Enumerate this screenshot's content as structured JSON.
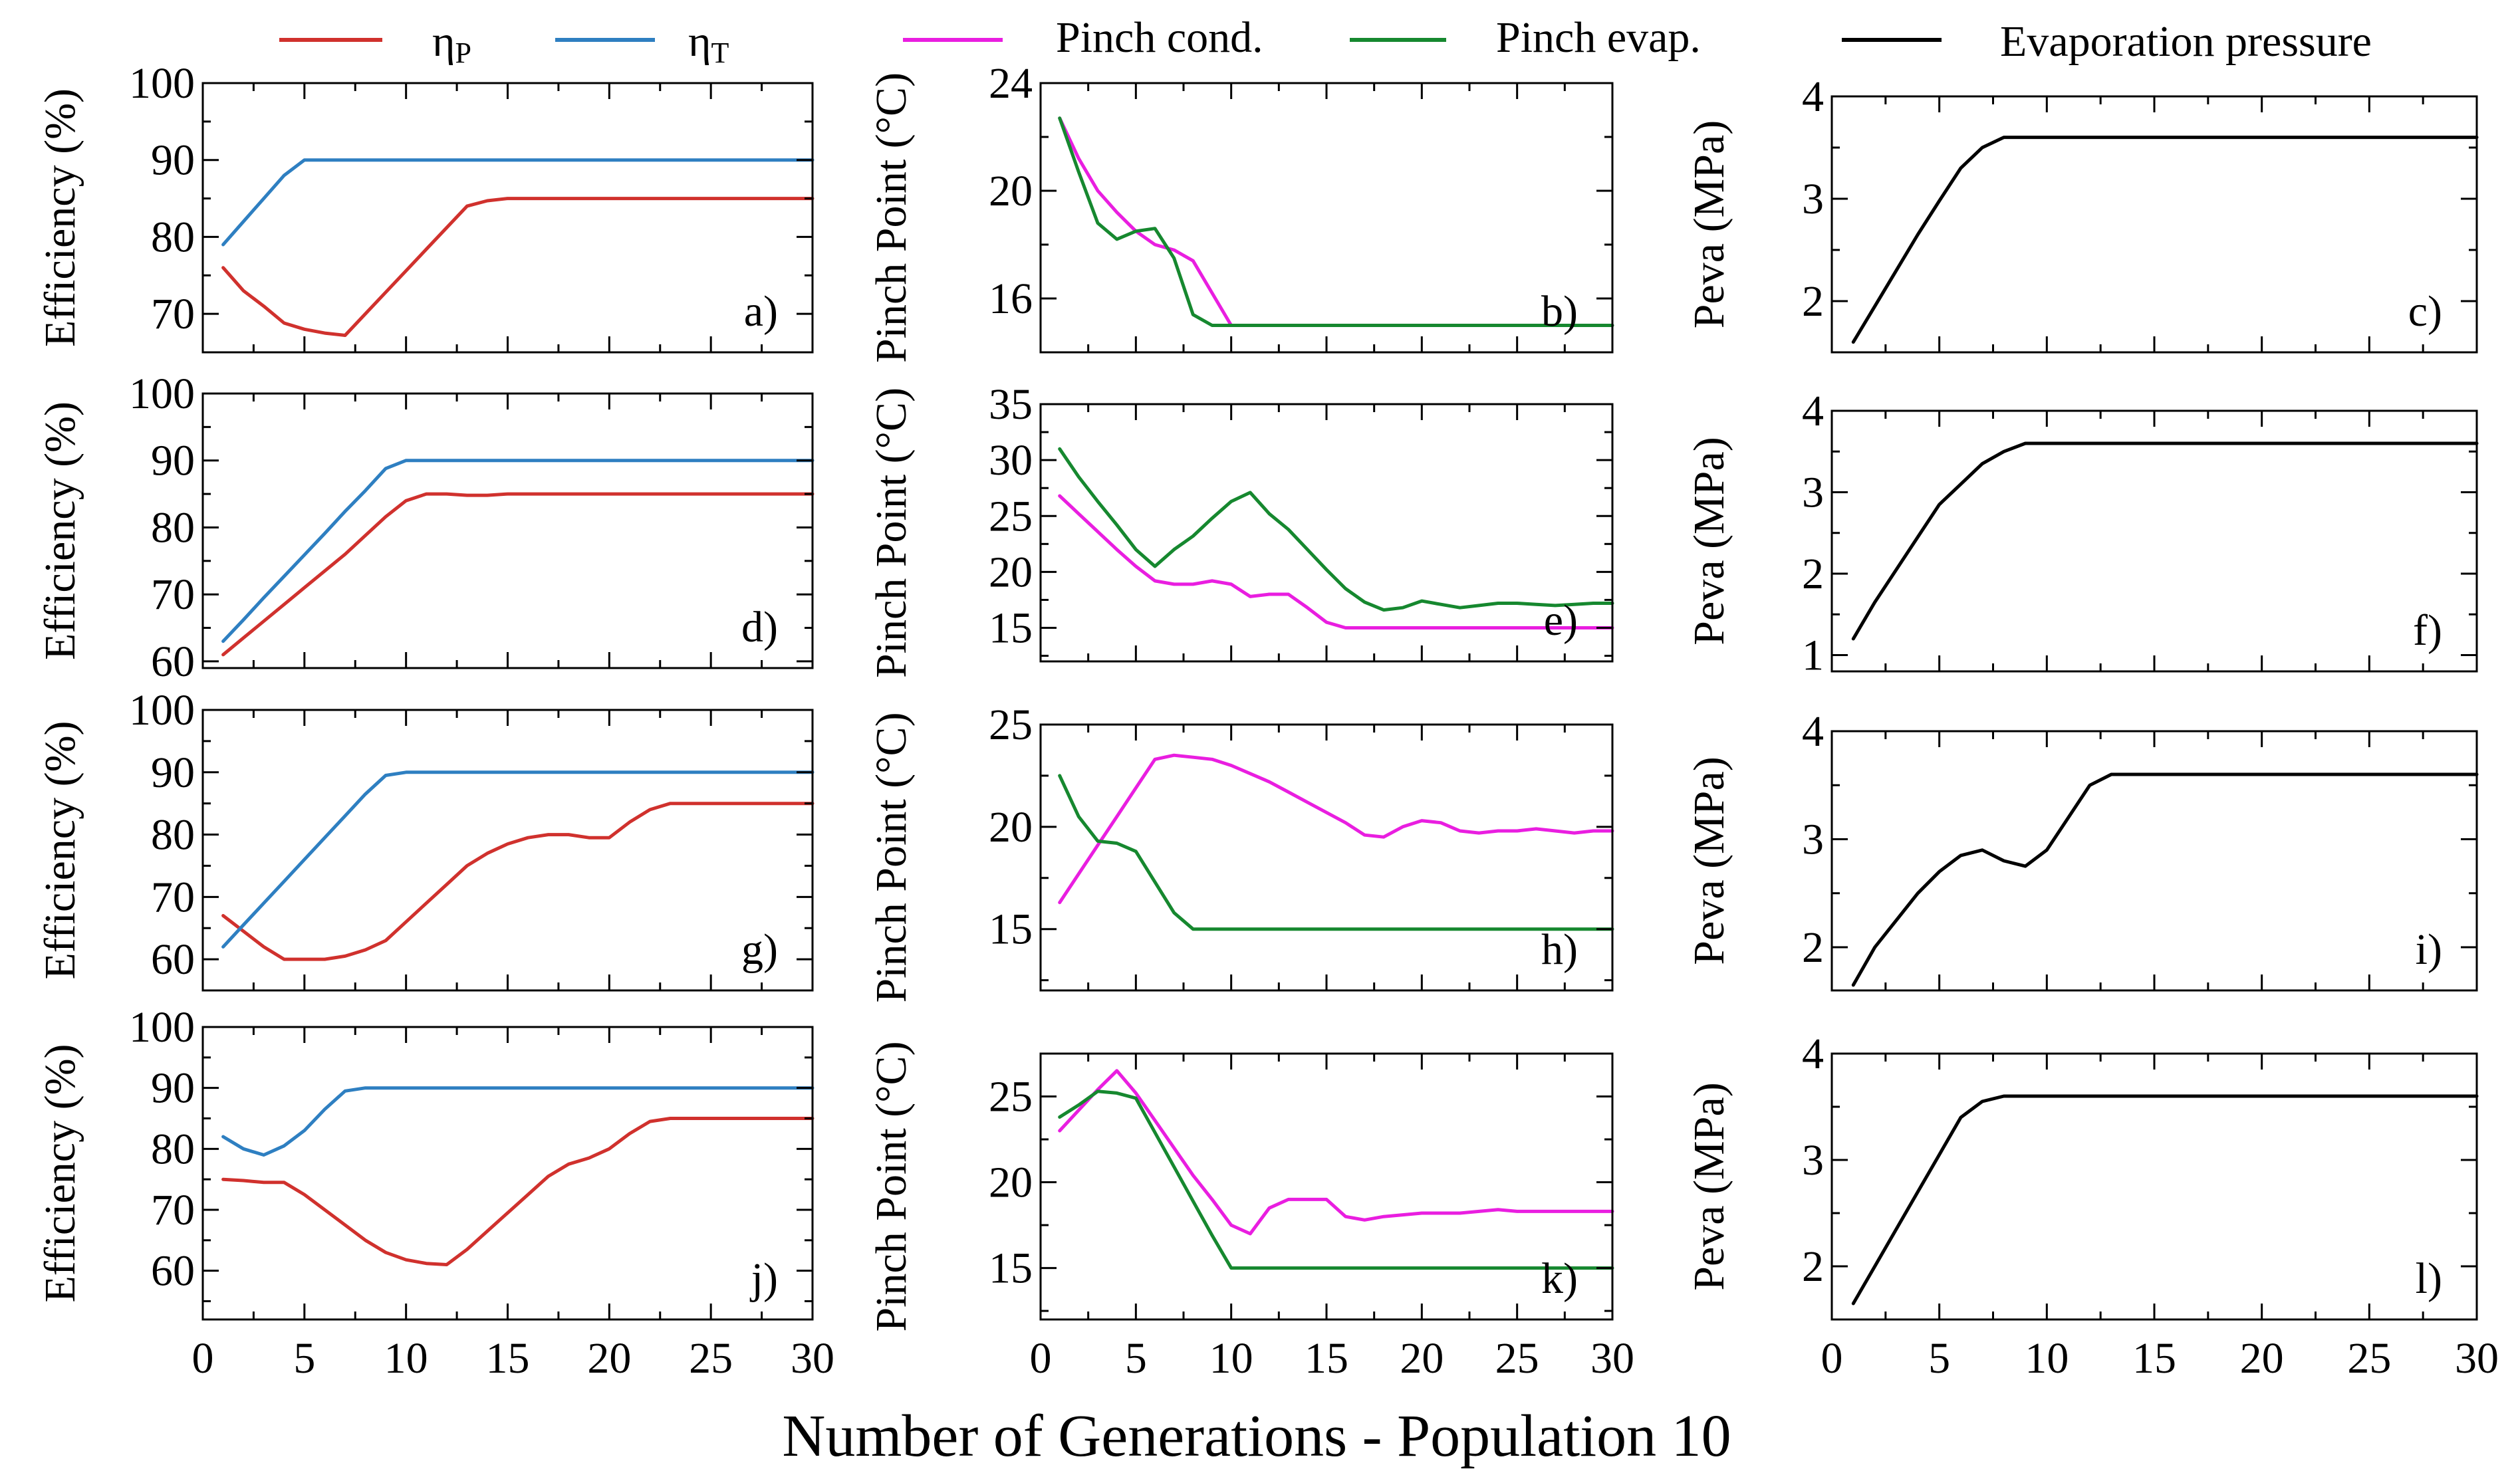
{
  "colors": {
    "eta_p": "#d0312d",
    "eta_t": "#2e7fc1",
    "pinch_cond": "#e91ee0",
    "pinch_evap": "#16882f",
    "pressure": "#000000"
  },
  "legend": [
    {
      "key": "eta_p",
      "label": "ηP",
      "main": "η",
      "sub": "P"
    },
    {
      "key": "eta_t",
      "label": "ηT",
      "main": "η",
      "sub": "T"
    },
    {
      "key": "pinch_cond",
      "label": "Pinch cond."
    },
    {
      "key": "pinch_evap",
      "label": "Pinch evap."
    },
    {
      "key": "pressure",
      "label": "Evaporation pressure"
    }
  ],
  "x_title": "Number of Generations - Population 10",
  "chart_data": [
    {
      "id": "a",
      "type": "line",
      "label": "a)",
      "ylabel": "Efficiency (%)",
      "xlim": [
        0,
        30
      ],
      "ylim": [
        65,
        100
      ],
      "yticks": [
        70,
        80,
        90,
        100
      ],
      "xticks": [
        0,
        5,
        10,
        15,
        20,
        25,
        30
      ],
      "show_x_ticklabels": false,
      "series": [
        {
          "name": "ηP",
          "color_key": "eta_p",
          "x": [
            1,
            2,
            3,
            4,
            5,
            6,
            7,
            8,
            9,
            10,
            11,
            12,
            13,
            14,
            15,
            16,
            30
          ],
          "y": [
            76,
            73,
            71,
            68.8,
            68,
            67.5,
            67.2,
            70,
            72.8,
            75.6,
            78.4,
            81.2,
            84,
            84.7,
            85,
            85,
            85
          ]
        },
        {
          "name": "ηT",
          "color_key": "eta_t",
          "x": [
            1,
            2,
            3,
            4,
            5,
            6,
            30
          ],
          "y": [
            79,
            82,
            85,
            88,
            90,
            90,
            90
          ]
        }
      ]
    },
    {
      "id": "b",
      "type": "line",
      "label": "b)",
      "ylabel": "Pinch Point (°C)",
      "xlim": [
        0,
        30
      ],
      "ylim": [
        14,
        24
      ],
      "yticks": [
        16,
        20,
        24
      ],
      "xticks": [
        0,
        5,
        10,
        15,
        20,
        25,
        30
      ],
      "show_x_ticklabels": false,
      "series": [
        {
          "name": "Pinch cond.",
          "color_key": "pinch_cond",
          "x": [
            1,
            2,
            3,
            4,
            5,
            6,
            7,
            8,
            9,
            10,
            11,
            30
          ],
          "y": [
            22.7,
            21.2,
            20,
            19.2,
            18.5,
            18,
            17.8,
            17.4,
            16.2,
            15,
            15,
            15
          ]
        },
        {
          "name": "Pinch evap.",
          "color_key": "pinch_evap",
          "x": [
            1,
            2,
            3,
            4,
            5,
            6,
            7,
            8,
            9,
            10,
            11,
            30
          ],
          "y": [
            22.7,
            20.7,
            18.8,
            18.2,
            18.5,
            18.6,
            17.5,
            15.4,
            15,
            15,
            15,
            15
          ]
        }
      ]
    },
    {
      "id": "c",
      "type": "line",
      "label": "c)",
      "ylabel": "Peva (MPa)",
      "xlim": [
        0,
        30
      ],
      "ylim": [
        1.5,
        4
      ],
      "yticks": [
        2,
        3,
        4
      ],
      "xticks": [
        0,
        5,
        10,
        15,
        20,
        25,
        30
      ],
      "show_x_ticklabels": false,
      "series": [
        {
          "name": "Evaporation pressure",
          "color_key": "pressure",
          "x": [
            1,
            2,
            3,
            4,
            5,
            6,
            7,
            8,
            9,
            30
          ],
          "y": [
            1.6,
            1.95,
            2.3,
            2.65,
            2.98,
            3.3,
            3.5,
            3.6,
            3.6,
            3.6
          ]
        }
      ]
    },
    {
      "id": "d",
      "type": "line",
      "label": "d)",
      "ylabel": "Efficiency (%)",
      "xlim": [
        0,
        30
      ],
      "ylim": [
        59,
        100
      ],
      "yticks": [
        60,
        70,
        80,
        90,
        100
      ],
      "xticks": [
        0,
        5,
        10,
        15,
        20,
        25,
        30
      ],
      "show_x_ticklabels": false,
      "series": [
        {
          "name": "ηP",
          "color_key": "eta_p",
          "x": [
            1,
            2,
            3,
            4,
            5,
            6,
            7,
            8,
            9,
            10,
            11,
            12,
            13,
            14,
            15,
            16,
            17,
            18,
            30
          ],
          "y": [
            61,
            63.5,
            66,
            68.5,
            71,
            73.5,
            76,
            78.8,
            81.6,
            84,
            85,
            85,
            84.8,
            84.8,
            85,
            85,
            85,
            85,
            85
          ]
        },
        {
          "name": "ηT",
          "color_key": "eta_t",
          "x": [
            1,
            2,
            3,
            4,
            5,
            6,
            7,
            8,
            9,
            10,
            11,
            30
          ],
          "y": [
            63,
            66.2,
            69.5,
            72.7,
            75.9,
            79.1,
            82.4,
            85.5,
            88.8,
            90,
            90,
            90
          ]
        }
      ]
    },
    {
      "id": "e",
      "type": "line",
      "label": "e)",
      "ylabel": "Pinch Point (°C)",
      "xlim": [
        0,
        30
      ],
      "ylim": [
        12,
        35
      ],
      "yticks": [
        15,
        20,
        25,
        30,
        35
      ],
      "xticks": [
        0,
        5,
        10,
        15,
        20,
        25,
        30
      ],
      "show_x_ticklabels": false,
      "series": [
        {
          "name": "Pinch cond.",
          "color_key": "pinch_cond",
          "x": [
            1,
            2,
            3,
            4,
            5,
            6,
            7,
            8,
            9,
            10,
            11,
            12,
            13,
            14,
            15,
            16,
            17,
            30
          ],
          "y": [
            26.8,
            25.2,
            23.6,
            22,
            20.5,
            19.2,
            18.9,
            18.9,
            19.2,
            18.9,
            17.8,
            18,
            18,
            16.8,
            15.5,
            15,
            15,
            15
          ]
        },
        {
          "name": "Pinch evap.",
          "color_key": "pinch_evap",
          "x": [
            1,
            2,
            3,
            4,
            5,
            6,
            7,
            8,
            9,
            10,
            11,
            12,
            13,
            14,
            15,
            16,
            17,
            18,
            19,
            20,
            21,
            22,
            23,
            24,
            25,
            26,
            27,
            28,
            29,
            30
          ],
          "y": [
            31,
            28.5,
            26.3,
            24.2,
            22,
            20.5,
            22,
            23.2,
            24.8,
            26.3,
            27.1,
            25.2,
            23.8,
            22,
            20.2,
            18.5,
            17.3,
            16.6,
            16.8,
            17.4,
            17.1,
            16.8,
            17,
            17.2,
            17.2,
            17.1,
            17,
            17.1,
            17.2,
            17.2
          ]
        }
      ]
    },
    {
      "id": "f",
      "type": "line",
      "label": "f)",
      "ylabel": "Peva (MPa)",
      "xlim": [
        0,
        30
      ],
      "ylim": [
        0.8,
        4
      ],
      "yticks": [
        1,
        2,
        3,
        4
      ],
      "xticks": [
        0,
        5,
        10,
        15,
        20,
        25,
        30
      ],
      "show_x_ticklabels": false,
      "series": [
        {
          "name": "Evaporation pressure",
          "color_key": "pressure",
          "x": [
            1,
            2,
            3,
            4,
            5,
            6,
            7,
            8,
            9,
            10,
            11,
            30
          ],
          "y": [
            1.2,
            1.65,
            2.05,
            2.45,
            2.85,
            3.1,
            3.35,
            3.5,
            3.6,
            3.6,
            3.6,
            3.6
          ]
        }
      ]
    },
    {
      "id": "g",
      "type": "line",
      "label": "g)",
      "ylabel": "Efficiency (%)",
      "xlim": [
        0,
        30
      ],
      "ylim": [
        55,
        100
      ],
      "yticks": [
        60,
        70,
        80,
        90,
        100
      ],
      "xticks": [
        0,
        5,
        10,
        15,
        20,
        25,
        30
      ],
      "show_x_ticklabels": false,
      "series": [
        {
          "name": "ηP",
          "color_key": "eta_p",
          "x": [
            1,
            2,
            3,
            4,
            5,
            6,
            7,
            8,
            9,
            10,
            11,
            12,
            13,
            14,
            15,
            16,
            17,
            18,
            19,
            20,
            21,
            22,
            23,
            24,
            25,
            30
          ],
          "y": [
            67,
            64.5,
            62,
            60,
            60,
            60,
            60.5,
            61.5,
            63,
            66,
            69,
            72,
            75,
            77,
            78.5,
            79.5,
            80,
            80,
            79.5,
            79.5,
            82,
            84,
            85,
            85,
            85,
            85
          ]
        },
        {
          "name": "ηT",
          "color_key": "eta_t",
          "x": [
            1,
            2,
            3,
            4,
            5,
            6,
            7,
            8,
            9,
            10,
            11,
            30
          ],
          "y": [
            62,
            65.5,
            69,
            72.5,
            76,
            79.5,
            83,
            86.5,
            89.5,
            90,
            90,
            90
          ]
        }
      ]
    },
    {
      "id": "h",
      "type": "line",
      "label": "h)",
      "ylabel": "Pinch Point (°C)",
      "xlim": [
        0,
        30
      ],
      "ylim": [
        12,
        25
      ],
      "yticks": [
        15,
        20,
        25
      ],
      "xticks": [
        0,
        5,
        10,
        15,
        20,
        25,
        30
      ],
      "show_x_ticklabels": false,
      "series": [
        {
          "name": "Pinch cond.",
          "color_key": "pinch_cond",
          "x": [
            1,
            2,
            3,
            4,
            5,
            6,
            7,
            8,
            9,
            10,
            11,
            12,
            13,
            14,
            15,
            16,
            17,
            18,
            19,
            20,
            21,
            22,
            23,
            24,
            25,
            26,
            27,
            28,
            29,
            30
          ],
          "y": [
            16.3,
            17.7,
            19.1,
            20.5,
            21.9,
            23.3,
            23.5,
            23.4,
            23.3,
            23,
            22.6,
            22.2,
            21.7,
            21.2,
            20.7,
            20.2,
            19.6,
            19.5,
            20,
            20.3,
            20.2,
            19.8,
            19.7,
            19.8,
            19.8,
            19.9,
            19.8,
            19.7,
            19.8,
            19.8
          ]
        },
        {
          "name": "Pinch evap.",
          "color_key": "pinch_evap",
          "x": [
            1,
            2,
            3,
            4,
            5,
            6,
            7,
            8,
            9,
            10,
            11,
            30
          ],
          "y": [
            22.5,
            20.5,
            19.3,
            19.2,
            18.8,
            17.3,
            15.8,
            15,
            15,
            15,
            15,
            15
          ]
        }
      ]
    },
    {
      "id": "i",
      "type": "line",
      "label": "i)",
      "ylabel": "Peva (MPa)",
      "xlim": [
        0,
        30
      ],
      "ylim": [
        1.6,
        4
      ],
      "yticks": [
        2,
        3,
        4
      ],
      "xticks": [
        0,
        5,
        10,
        15,
        20,
        25,
        30
      ],
      "show_x_ticklabels": false,
      "series": [
        {
          "name": "Evaporation pressure",
          "color_key": "pressure",
          "x": [
            1,
            2,
            3,
            4,
            5,
            6,
            7,
            8,
            9,
            10,
            11,
            12,
            13,
            14,
            30
          ],
          "y": [
            1.65,
            2,
            2.25,
            2.5,
            2.7,
            2.85,
            2.9,
            2.8,
            2.75,
            2.9,
            3.2,
            3.5,
            3.6,
            3.6,
            3.6
          ]
        }
      ]
    },
    {
      "id": "j",
      "type": "line",
      "label": "j)",
      "ylabel": "Efficiency (%)",
      "xlim": [
        0,
        30
      ],
      "ylim": [
        52,
        100
      ],
      "yticks": [
        60,
        70,
        80,
        90,
        100
      ],
      "xticks": [
        0,
        5,
        10,
        15,
        20,
        25,
        30
      ],
      "show_x_ticklabels": true,
      "series": [
        {
          "name": "ηP",
          "color_key": "eta_p",
          "x": [
            1,
            2,
            3,
            4,
            5,
            6,
            7,
            8,
            9,
            10,
            11,
            12,
            13,
            14,
            15,
            16,
            17,
            18,
            19,
            20,
            21,
            22,
            23,
            24,
            25,
            30
          ],
          "y": [
            75,
            74.8,
            74.5,
            74.5,
            72.5,
            70,
            67.5,
            65,
            63,
            61.8,
            61.2,
            61,
            63.5,
            66.5,
            69.5,
            72.5,
            75.5,
            77.5,
            78.5,
            80,
            82.5,
            84.5,
            85,
            85,
            85,
            85
          ]
        },
        {
          "name": "ηT",
          "color_key": "eta_t",
          "x": [
            1,
            2,
            3,
            4,
            5,
            6,
            7,
            8,
            9,
            30
          ],
          "y": [
            82,
            80,
            79,
            80.5,
            83,
            86.5,
            89.5,
            90,
            90,
            90
          ]
        }
      ]
    },
    {
      "id": "k",
      "type": "line",
      "label": "k)",
      "ylabel": "Pinch Point (°C)",
      "xlim": [
        0,
        30
      ],
      "ylim": [
        12,
        27.5
      ],
      "yticks": [
        15,
        20,
        25
      ],
      "xticks": [
        0,
        5,
        10,
        15,
        20,
        25,
        30
      ],
      "show_x_ticklabels": true,
      "series": [
        {
          "name": "Pinch cond.",
          "color_key": "pinch_cond",
          "x": [
            1,
            2,
            3,
            4,
            5,
            6,
            7,
            8,
            9,
            10,
            11,
            12,
            13,
            14,
            15,
            16,
            17,
            18,
            19,
            20,
            21,
            22,
            23,
            24,
            25,
            26,
            27,
            28,
            29,
            30
          ],
          "y": [
            23,
            24.2,
            25.4,
            26.5,
            25.2,
            23.6,
            22,
            20.4,
            19,
            17.5,
            17,
            18.5,
            19,
            19,
            19,
            18,
            17.8,
            18,
            18.1,
            18.2,
            18.2,
            18.2,
            18.3,
            18.4,
            18.3,
            18.3,
            18.3,
            18.3,
            18.3,
            18.3
          ]
        },
        {
          "name": "Pinch evap.",
          "color_key": "pinch_evap",
          "x": [
            1,
            2,
            3,
            4,
            5,
            6,
            7,
            8,
            9,
            10,
            11,
            30
          ],
          "y": [
            23.8,
            24.5,
            25.3,
            25.2,
            24.9,
            22.9,
            20.9,
            18.9,
            16.9,
            15,
            15,
            15
          ]
        }
      ]
    },
    {
      "id": "l",
      "type": "line",
      "label": "l)",
      "ylabel": "Peva (MPa)",
      "xlim": [
        0,
        30
      ],
      "ylim": [
        1.5,
        4
      ],
      "yticks": [
        2,
        3,
        4
      ],
      "xticks": [
        0,
        5,
        10,
        15,
        20,
        25,
        30
      ],
      "show_x_ticklabels": true,
      "series": [
        {
          "name": "Evaporation pressure",
          "color_key": "pressure",
          "x": [
            1,
            2,
            3,
            4,
            5,
            6,
            7,
            8,
            9,
            30
          ],
          "y": [
            1.65,
            2,
            2.35,
            2.7,
            3.05,
            3.4,
            3.55,
            3.6,
            3.6,
            3.6
          ]
        }
      ]
    }
  ]
}
